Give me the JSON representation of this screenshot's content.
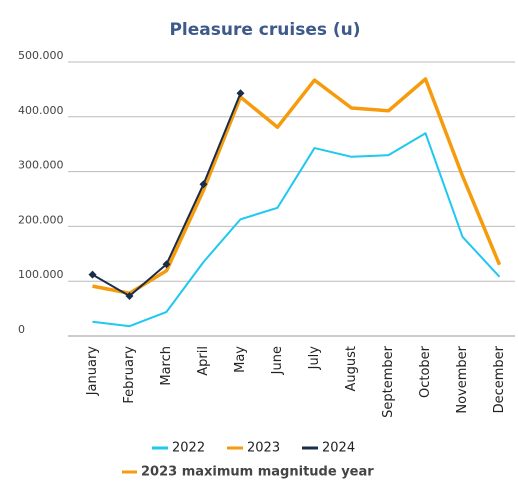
{
  "chart_data": {
    "type": "line",
    "title": "Pleasure cruises (u)",
    "categories": [
      "January",
      "February",
      "March",
      "April",
      "May",
      "June",
      "July",
      "August",
      "September",
      "October",
      "November",
      "December"
    ],
    "series": [
      {
        "name": "2022",
        "color": "#1ec8f0",
        "values": [
          26000,
          18000,
          44000,
          135000,
          213000,
          234000,
          343000,
          327000,
          330000,
          370000,
          181000,
          108000
        ]
      },
      {
        "name": "2023",
        "color": "#f59b0c",
        "values": [
          91000,
          78000,
          119000,
          266000,
          436000,
          381000,
          467000,
          416000,
          411000,
          469000,
          292000,
          130000
        ]
      },
      {
        "name": "2024",
        "color": "#1a2e4a",
        "values": [
          112000,
          73000,
          131000,
          277000,
          443000,
          null,
          null,
          null,
          null,
          null,
          null,
          null
        ],
        "markers": true
      }
    ],
    "ylim": [
      0,
      500000
    ],
    "yticks": [
      0,
      {
        "value": 100000,
        "label": "100.000"
      },
      {
        "value": 200000,
        "label": "200.000"
      },
      {
        "value": 300000,
        "label": "300.000"
      },
      {
        "value": 400000,
        "label": "400.000"
      },
      {
        "value": 500000,
        "label": "500.000"
      }
    ],
    "grid": true,
    "annotation": "2023 maximum magnitude year"
  }
}
